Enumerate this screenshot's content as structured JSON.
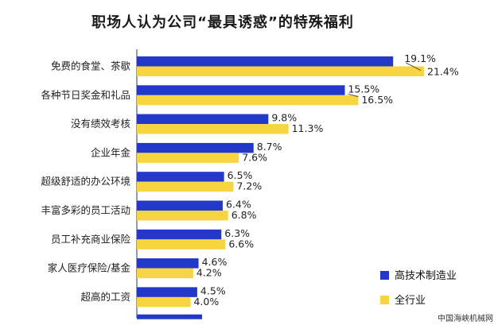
{
  "title": "职场人认为公司“最具诱惑”的特殊福利",
  "watermark": "中国海峡机械网",
  "colors": {
    "series_a": "#2338c9",
    "series_b": "#f7d442",
    "axis": "#6a7f9e"
  },
  "chart_data": {
    "type": "bar",
    "orientation": "horizontal",
    "title": "职场人认为公司“最具诱惑”的特殊福利",
    "categories": [
      "免费的食堂、茶歇",
      "各种节日奖金和礼品",
      "没有绩效考核",
      "企业年金",
      "超级舒适的办公环境",
      "丰富多彩的员工活动",
      "员工补充商业保险",
      "家人医疗保险/基金",
      "超高的工资"
    ],
    "series": [
      {
        "name": "高技术制造业",
        "values": [
          19.1,
          15.5,
          9.8,
          8.7,
          6.5,
          6.4,
          6.3,
          4.6,
          4.5
        ],
        "labels": [
          "19.1%",
          "15.5%",
          "9.8%",
          "8.7%",
          "6.5%",
          "6.4%",
          "6.3%",
          "4.6%",
          "4.5%"
        ]
      },
      {
        "name": "全行业",
        "values": [
          21.4,
          16.5,
          11.3,
          7.6,
          7.2,
          6.8,
          6.6,
          4.2,
          4.0
        ],
        "labels": [
          "21.4%",
          "16.5%",
          "11.3%",
          "7.6%",
          "7.2%",
          "6.8%",
          "6.6%",
          "4.2%",
          "4.0%"
        ]
      }
    ],
    "xlim": [
      0,
      21.4
    ],
    "grid": false,
    "legend_position": "bottom-right"
  }
}
